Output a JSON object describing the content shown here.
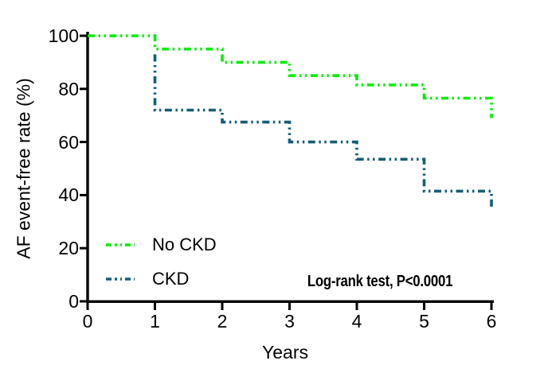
{
  "chart_data": {
    "type": "line",
    "subtype": "kaplan-meier-step",
    "title": "",
    "xlabel": "Years",
    "ylabel": "AF event-free rate (%)",
    "xlim": [
      0,
      6
    ],
    "ylim": [
      0,
      100
    ],
    "xticks": [
      0,
      1,
      2,
      3,
      4,
      5,
      6
    ],
    "yticks": [
      0,
      20,
      40,
      60,
      80,
      100
    ],
    "grid": false,
    "legend_position": "inside-lower-left",
    "annotation": {
      "text": "Log-rank test, P<0.0001",
      "bold": true
    },
    "axis_color": "#000000",
    "series": [
      {
        "name": "No CKD",
        "color": "#00ef00",
        "dash_style": "dash-dot-dot",
        "points": [
          [
            0,
            100
          ],
          [
            1,
            100
          ],
          [
            1,
            95
          ],
          [
            2,
            95
          ],
          [
            2,
            90
          ],
          [
            3,
            90
          ],
          [
            3,
            85
          ],
          [
            4,
            85
          ],
          [
            4,
            81.5
          ],
          [
            5,
            81.5
          ],
          [
            5,
            76.5
          ],
          [
            6,
            76.5
          ],
          [
            6,
            69
          ]
        ]
      },
      {
        "name": "CKD",
        "color": "#155d78",
        "dash_style": "dash-dot-dot",
        "points": [
          [
            1,
            93
          ],
          [
            1,
            72
          ],
          [
            2,
            72
          ],
          [
            2,
            67.5
          ],
          [
            3,
            67.5
          ],
          [
            3,
            60
          ],
          [
            4,
            60
          ],
          [
            4,
            53.5
          ],
          [
            5,
            53.5
          ],
          [
            5,
            41.5
          ],
          [
            6,
            41.5
          ],
          [
            6,
            35
          ]
        ]
      }
    ]
  }
}
